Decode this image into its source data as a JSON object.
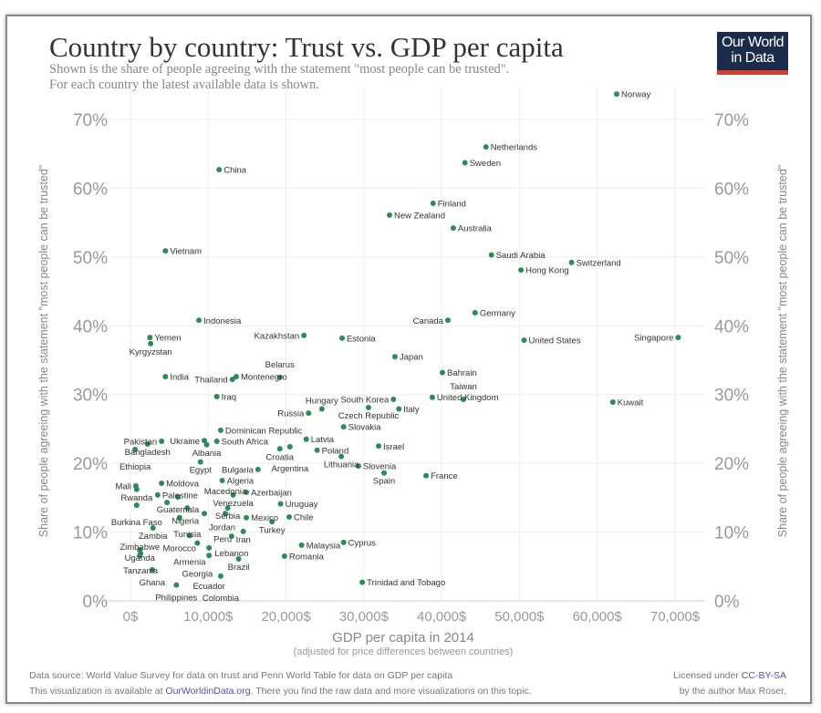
{
  "header": {
    "title": "Country by country: Trust vs. GDP per capita",
    "subtitle_line1": "Shown is the share of people agreeing with the statement \"most people can be trusted\".",
    "subtitle_line2": "For each country the latest available data is shown.",
    "logo_text_line1": "Our World",
    "logo_text_line2": "in Data"
  },
  "footer": {
    "source_line": "Data source: World Value Survey for data on trust and Penn World Table for data on GDP per capita",
    "availability_prefix": "This visualization is available at ",
    "availability_link": "OurWorldinData.org",
    "availability_suffix": ". There you find the raw data and more visualizations on this topic.",
    "license_prefix": "Licensed under ",
    "license_link": "CC-BY-SA",
    "license_author": "by the author Max Roser."
  },
  "colors": {
    "point": "#2e8b57",
    "logo_bg": "#1a2b4c",
    "logo_accent": "#d73c2c",
    "link": "#5a4fb0"
  },
  "chart_data": {
    "type": "scatter",
    "xlabel": "GDP per capita in 2014",
    "xlabel_sub": "(adjusted for price differences between countries)",
    "ylabel": "Share of people agreeing with the statement \"most people can be trusted\"",
    "xlim": [
      0,
      70000
    ],
    "ylim": [
      0,
      70
    ],
    "x_ticks": [
      0,
      10000,
      20000,
      30000,
      40000,
      50000,
      60000,
      70000
    ],
    "x_tick_labels": [
      "0$",
      "10,000$",
      "20,000$",
      "30,000$",
      "40,000$",
      "50,000$",
      "60,000$",
      "70,000$"
    ],
    "y_ticks": [
      0,
      10,
      20,
      30,
      40,
      50,
      60,
      70
    ],
    "y_tick_labels": [
      "0%",
      "10%",
      "20%",
      "30%",
      "40%",
      "50%",
      "60%",
      "70%"
    ],
    "grid": true,
    "points": [
      {
        "name": "Norway",
        "x": 62500,
        "y": 73.7
      },
      {
        "name": "Netherlands",
        "x": 45700,
        "y": 66.0
      },
      {
        "name": "Sweden",
        "x": 43000,
        "y": 63.7
      },
      {
        "name": "China",
        "x": 11400,
        "y": 62.7
      },
      {
        "name": "Finland",
        "x": 38900,
        "y": 57.8
      },
      {
        "name": "New Zealand",
        "x": 33300,
        "y": 56.1
      },
      {
        "name": "Australia",
        "x": 41500,
        "y": 54.2
      },
      {
        "name": "Vietnam",
        "x": 4500,
        "y": 50.9
      },
      {
        "name": "Saudi Arabia",
        "x": 46400,
        "y": 50.3
      },
      {
        "name": "Switzerland",
        "x": 56700,
        "y": 49.2
      },
      {
        "name": "Hong Kong",
        "x": 50200,
        "y": 48.1
      },
      {
        "name": "Germany",
        "x": 44300,
        "y": 41.9
      },
      {
        "name": "Canada",
        "x": 40800,
        "y": 40.8
      },
      {
        "name": "Indonesia",
        "x": 8800,
        "y": 40.8
      },
      {
        "name": "Kazakhstan",
        "x": 22300,
        "y": 38.6
      },
      {
        "name": "Estonia",
        "x": 27200,
        "y": 38.2
      },
      {
        "name": "United States",
        "x": 50600,
        "y": 37.9
      },
      {
        "name": "Singapore",
        "x": 70400,
        "y": 38.3
      },
      {
        "name": "Yemen",
        "x": 2500,
        "y": 38.3
      },
      {
        "name": "Kyrgyzstan",
        "x": 2600,
        "y": 37.4
      },
      {
        "name": "Japan",
        "x": 34000,
        "y": 35.5
      },
      {
        "name": "Bahrain",
        "x": 40100,
        "y": 33.2
      },
      {
        "name": "Montenegro",
        "x": 13600,
        "y": 32.6
      },
      {
        "name": "Thailand",
        "x": 13100,
        "y": 32.2
      },
      {
        "name": "India",
        "x": 4500,
        "y": 32.6
      },
      {
        "name": "Belarus",
        "x": 19200,
        "y": 32.5
      },
      {
        "name": "Iraq",
        "x": 11100,
        "y": 29.7
      },
      {
        "name": "Kuwait",
        "x": 62000,
        "y": 28.9
      },
      {
        "name": "United Kingdom",
        "x": 38800,
        "y": 29.6
      },
      {
        "name": "Taiwan",
        "x": 42800,
        "y": 29.3
      },
      {
        "name": "South Korea",
        "x": 33800,
        "y": 29.3
      },
      {
        "name": "Czech Republic",
        "x": 30600,
        "y": 28.1
      },
      {
        "name": "Italy",
        "x": 34500,
        "y": 27.9
      },
      {
        "name": "Russia",
        "x": 22900,
        "y": 27.3
      },
      {
        "name": "Hungary",
        "x": 24600,
        "y": 27.9
      },
      {
        "name": "Slovakia",
        "x": 27400,
        "y": 25.3
      },
      {
        "name": "Dominican Republic",
        "x": 11600,
        "y": 24.8
      },
      {
        "name": "Latvia",
        "x": 22600,
        "y": 23.5
      },
      {
        "name": "Ukraine",
        "x": 9500,
        "y": 23.3
      },
      {
        "name": "South Africa",
        "x": 11100,
        "y": 23.2
      },
      {
        "name": "Pakistan",
        "x": 4000,
        "y": 23.2
      },
      {
        "name": "Bangladesh",
        "x": 2200,
        "y": 22.8
      },
      {
        "name": "Albania",
        "x": 9800,
        "y": 22.7
      },
      {
        "name": "Israel",
        "x": 31900,
        "y": 22.5
      },
      {
        "name": "Croatia",
        "x": 19200,
        "y": 22.1
      },
      {
        "name": "Argentina",
        "x": 20500,
        "y": 22.4
      },
      {
        "name": "Ethiopia",
        "x": 600,
        "y": 22.0
      },
      {
        "name": "Poland",
        "x": 24000,
        "y": 21.9
      },
      {
        "name": "Lithuania",
        "x": 27100,
        "y": 21.0
      },
      {
        "name": "Egypt",
        "x": 9000,
        "y": 20.2
      },
      {
        "name": "Slovenia",
        "x": 29300,
        "y": 19.6
      },
      {
        "name": "Bulgaria",
        "x": 16400,
        "y": 19.1
      },
      {
        "name": "Spain",
        "x": 32600,
        "y": 18.6
      },
      {
        "name": "France",
        "x": 38000,
        "y": 18.2
      },
      {
        "name": "Algeria",
        "x": 11800,
        "y": 17.5
      },
      {
        "name": "Moldova",
        "x": 4000,
        "y": 17.1
      },
      {
        "name": "Mali",
        "x": 700,
        "y": 16.7
      },
      {
        "name": "Rwanda",
        "x": 800,
        "y": 16.2
      },
      {
        "name": "Azerbaijan",
        "x": 14900,
        "y": 15.8
      },
      {
        "name": "Palestine",
        "x": 3500,
        "y": 15.4
      },
      {
        "name": "Guatemala",
        "x": 6100,
        "y": 15.1
      },
      {
        "name": "Venezuela",
        "x": 13200,
        "y": 15.4
      },
      {
        "name": "Burkina Faso",
        "x": 800,
        "y": 13.9
      },
      {
        "name": "Nigeria",
        "x": 4700,
        "y": 14.3
      },
      {
        "name": "Uruguay",
        "x": 19300,
        "y": 14.1
      },
      {
        "name": "Tunisia",
        "x": 7300,
        "y": 13.5
      },
      {
        "name": "Serbia",
        "x": 12500,
        "y": 13.5
      },
      {
        "name": "Jordan",
        "x": 9500,
        "y": 12.7
      },
      {
        "name": "Macedonia",
        "x": 12200,
        "y": 12.7
      },
      {
        "name": "Chile",
        "x": 20400,
        "y": 12.2
      },
      {
        "name": "Morocco",
        "x": 6300,
        "y": 12.1
      },
      {
        "name": "Mexico",
        "x": 14900,
        "y": 12.1
      },
      {
        "name": "Turkey",
        "x": 18200,
        "y": 11.5
      },
      {
        "name": "Zambia",
        "x": 2900,
        "y": 10.6
      },
      {
        "name": "Iran",
        "x": 14500,
        "y": 10.1
      },
      {
        "name": "Armenia",
        "x": 7600,
        "y": 9.5
      },
      {
        "name": "Lebanon",
        "x": 13000,
        "y": 9.4
      },
      {
        "name": "Georgia",
        "x": 8600,
        "y": 8.4
      },
      {
        "name": "Cyprus",
        "x": 27400,
        "y": 8.5
      },
      {
        "name": "Peru",
        "x": 10100,
        "y": 7.7
      },
      {
        "name": "Malaysia",
        "x": 22000,
        "y": 8.1
      },
      {
        "name": "Uganda",
        "x": 1200,
        "y": 7.4
      },
      {
        "name": "Tanzania",
        "x": 1300,
        "y": 6.9
      },
      {
        "name": "Zimbabwe",
        "x": 1200,
        "y": 6.6
      },
      {
        "name": "Ecuador",
        "x": 10100,
        "y": 6.6
      },
      {
        "name": "Brazil",
        "x": 13900,
        "y": 6.1
      },
      {
        "name": "Romania",
        "x": 19800,
        "y": 6.5
      },
      {
        "name": "Ghana",
        "x": 2800,
        "y": 4.5
      },
      {
        "name": "Colombia",
        "x": 11600,
        "y": 3.6
      },
      {
        "name": "Trinidad and Tobago",
        "x": 29800,
        "y": 2.7
      },
      {
        "name": "Philippines",
        "x": 5900,
        "y": 2.3
      }
    ]
  }
}
